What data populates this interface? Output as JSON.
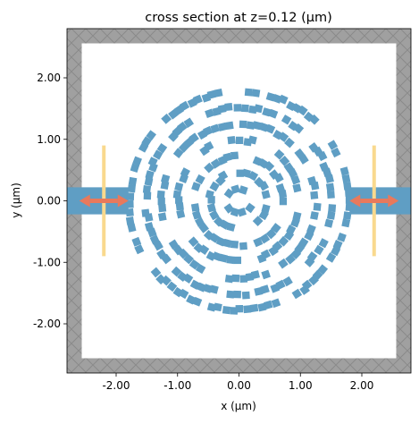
{
  "chart_data": {
    "type": "heatmap",
    "title": "cross section at z=0.12 (μm)",
    "xlabel": "x (μm)",
    "ylabel": "y (μm)",
    "xlim": [
      -2.8,
      2.8
    ],
    "ylim": [
      -2.8,
      2.8
    ],
    "xticks": [
      -2.0,
      -1.0,
      0.0,
      1.0,
      2.0
    ],
    "yticks": [
      -2.0,
      -1.0,
      0.0,
      1.0,
      2.0
    ],
    "xtick_labels": [
      "-2.00",
      "-1.00",
      "0.00",
      "1.00",
      "2.00"
    ],
    "ytick_labels": [
      "-2.00",
      "-1.00",
      "0.00",
      "1.00",
      "2.00"
    ],
    "pml_thickness": 0.24,
    "waveguide": {
      "y": 0.0,
      "width": 0.44,
      "left_end": -1.8,
      "right_start": 1.8
    },
    "design_region": {
      "center": [
        0.0,
        0.0
      ],
      "radius": 1.78,
      "ring_count": 7,
      "pixel_size": 0.12
    },
    "sources": [
      {
        "x": -2.2,
        "y_span": [
          -0.9,
          0.9
        ]
      }
    ],
    "monitors": [
      {
        "x": 2.2,
        "y_span": [
          -0.9,
          0.9
        ]
      }
    ],
    "mode_arrows": [
      {
        "from_x": -2.6,
        "to_x": -1.8,
        "y": 0.0
      },
      {
        "from_x": 1.8,
        "to_x": 2.6,
        "y": 0.0
      }
    ],
    "colors": {
      "structure": "#5f9ec4",
      "pml": "#a0a0a0",
      "pml_edge": "#8a8a8a",
      "source": "#f9d98e",
      "arrow": "#e8795c",
      "background": "#ffffff"
    }
  }
}
